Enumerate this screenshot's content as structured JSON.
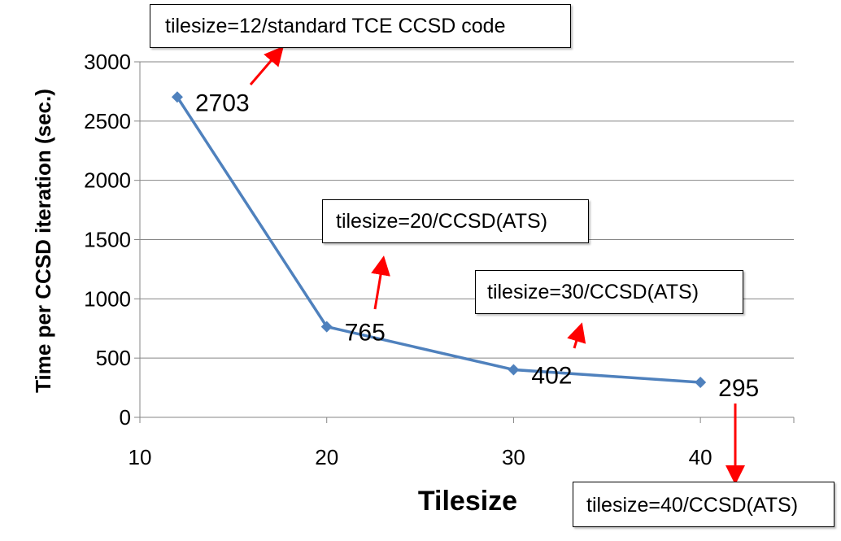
{
  "chart_data": {
    "type": "line",
    "x": [
      12,
      20,
      30,
      40
    ],
    "series": [
      {
        "values": [
          2703,
          765,
          402,
          295
        ]
      }
    ],
    "data_labels": [
      "2703",
      "765",
      "402",
      "295"
    ],
    "xlabel": "Tilesize",
    "ylabel": "Time per CCSD iteration (sec.)",
    "xlim": [
      10,
      45
    ],
    "ylim": [
      0,
      3000
    ],
    "x_ticks": [
      10,
      20,
      30,
      40
    ],
    "y_ticks": [
      0,
      500,
      1000,
      1500,
      2000,
      2500,
      3000
    ],
    "grid": "horizontal",
    "legend": "none",
    "line_color": "#4F81BD",
    "annotation_arrow_color": "#FF0000",
    "annotations": [
      "tilesize=12/standard TCE CCSD code",
      "tilesize=20/CCSD(ATS)",
      "tilesize=30/CCSD(ATS)",
      "tilesize=40/CCSD(ATS)"
    ]
  }
}
